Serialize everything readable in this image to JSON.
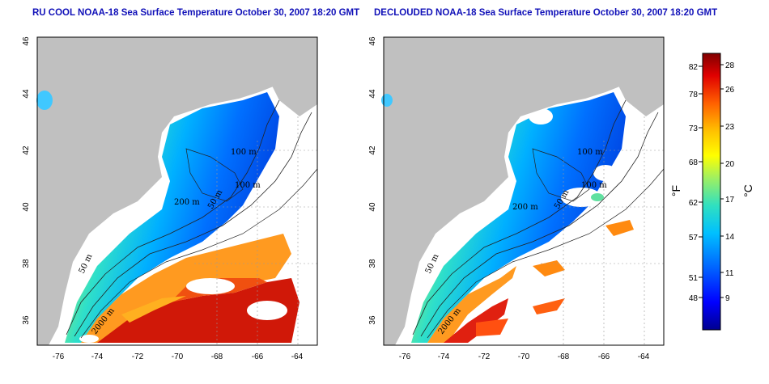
{
  "left_panel": {
    "title": "RU COOL NOAA-18 Sea Surface Temperature October 30, 2007 18:20 GMT"
  },
  "right_panel": {
    "title": "DECLOUDED NOAA-18 Sea Surface Temperature October 30, 2007 18:20 GMT"
  },
  "map": {
    "lon_ticks": [
      "-76",
      "-74",
      "-72",
      "-70",
      "-68",
      "-66",
      "-64"
    ],
    "lat_ticks": [
      "36",
      "38",
      "40",
      "42",
      "44",
      "46"
    ],
    "lon_range": [
      -77,
      -63
    ],
    "lat_range": [
      35,
      46
    ],
    "isobath_labels": [
      "50 m",
      "100 m",
      "200 m",
      "2000 m",
      "50 m",
      "200 m",
      "100 m"
    ],
    "colors": {
      "land": "#c0c0c0",
      "no_data": "#ffffff",
      "isobath": "#222222"
    }
  },
  "colorbar": {
    "unit_f": "°F",
    "unit_c": "°C",
    "fahrenheit_ticks": [
      "82",
      "78",
      "73",
      "68",
      "62",
      "57",
      "51",
      "48"
    ],
    "celsius_ticks": [
      "28",
      "26",
      "23",
      "20",
      "17",
      "14",
      "11",
      "9"
    ],
    "range_c": [
      6,
      29
    ],
    "colors": [
      "#00008f",
      "#0000ff",
      "#0060ff",
      "#00c0ff",
      "#30e0c0",
      "#a0f060",
      "#ffff00",
      "#ffc000",
      "#ff6000",
      "#e00000",
      "#800000"
    ]
  }
}
